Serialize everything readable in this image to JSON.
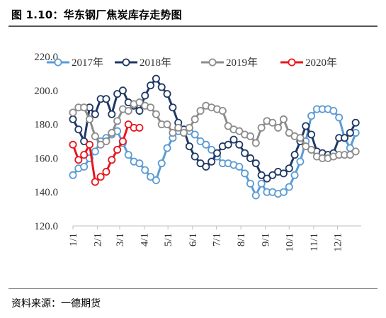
{
  "figure": {
    "title": "图 1.10：华东钢厂焦炭库存走势图",
    "source": "资料来源：一德期货"
  },
  "chart_data": {
    "type": "line",
    "title": "",
    "xlabel": "",
    "ylabel": "",
    "ylim": [
      120,
      220
    ],
    "yticks": [
      "120.0",
      "140.0",
      "160.0",
      "180.0",
      "200.0",
      "220.0"
    ],
    "xlim": [
      0,
      52
    ],
    "xticks": [
      {
        "label": "1/1",
        "x": 0
      },
      {
        "label": "2/1",
        "x": 4.43
      },
      {
        "label": "3/1",
        "x": 8.43
      },
      {
        "label": "4/1",
        "x": 12.86
      },
      {
        "label": "5/1",
        "x": 17.14
      },
      {
        "label": "6/1",
        "x": 21.57
      },
      {
        "label": "7/1",
        "x": 25.86
      },
      {
        "label": "8/1",
        "x": 30.29
      },
      {
        "label": "9/1",
        "x": 34.71
      },
      {
        "label": "10/1",
        "x": 39.0
      },
      {
        "label": "11/1",
        "x": 43.43
      },
      {
        "label": "12/1",
        "x": 47.71
      }
    ],
    "grid": false,
    "legend": "top",
    "series": [
      {
        "name": "2017年",
        "color": "#5b9bd5",
        "x": [
          0,
          1,
          2,
          3,
          4,
          5,
          6,
          7,
          8,
          9,
          10,
          11,
          12,
          13,
          14,
          15,
          16,
          17,
          18,
          19,
          20,
          21,
          22,
          23,
          24,
          25,
          26,
          27,
          28,
          29,
          30,
          31,
          32,
          33,
          34,
          35,
          36,
          37,
          38,
          39,
          40,
          41,
          42,
          43,
          44,
          45,
          46,
          47,
          48,
          49,
          50,
          51
        ],
        "values": [
          150,
          154,
          155,
          160,
          164,
          170,
          172,
          174,
          176,
          169,
          162,
          158,
          157,
          153,
          149,
          147,
          157,
          166,
          172,
          176,
          176,
          176,
          174,
          170,
          168,
          165,
          161,
          157,
          157,
          156,
          155,
          151,
          145,
          138,
          145,
          140,
          140,
          139,
          140,
          143,
          150,
          158,
          170,
          185,
          189,
          189,
          189,
          188,
          184,
          172,
          166,
          175
        ]
      },
      {
        "name": "2018年",
        "color": "#1f3864",
        "x": [
          0,
          1,
          2,
          3,
          4,
          5,
          6,
          7,
          8,
          9,
          10,
          11,
          12,
          13,
          14,
          15,
          16,
          17,
          18,
          19,
          20,
          21,
          22,
          23,
          24,
          25,
          26,
          27,
          28,
          29,
          30,
          31,
          32,
          33,
          34,
          35,
          36,
          37,
          38,
          39,
          40,
          41,
          42,
          43,
          44,
          45,
          46,
          47,
          48,
          49,
          50,
          51
        ],
        "values": [
          183,
          177,
          170,
          190,
          186,
          195,
          195,
          186,
          198,
          200,
          193,
          191,
          188,
          197,
          203,
          207,
          202,
          198,
          190,
          181,
          177,
          167,
          161,
          157,
          155,
          158,
          163,
          167,
          168,
          171,
          168,
          163,
          160,
          157,
          150,
          148,
          150,
          152,
          151,
          154,
          162,
          170,
          179,
          174,
          164,
          163,
          162,
          163,
          172,
          172,
          175,
          181
        ]
      },
      {
        "name": "2019年",
        "color": "#8c8c8c",
        "x": [
          0,
          1,
          2,
          3,
          4,
          5,
          6,
          7,
          8,
          9,
          10,
          11,
          12,
          13,
          14,
          15,
          16,
          17,
          18,
          19,
          20,
          21,
          22,
          23,
          24,
          25,
          26,
          27,
          28,
          29,
          30,
          31,
          32,
          33,
          34,
          35,
          36,
          37,
          38,
          39,
          40,
          41,
          42,
          43,
          44,
          45,
          46,
          47,
          48,
          49,
          50,
          51
        ],
        "values": [
          187,
          190,
          190,
          183,
          173,
          168,
          170,
          175,
          182,
          189,
          188,
          192,
          193,
          191,
          190,
          186,
          180,
          180,
          175,
          178,
          175,
          178,
          183,
          188,
          191,
          190,
          189,
          188,
          179,
          177,
          176,
          174,
          173,
          169,
          178,
          182,
          181,
          178,
          183,
          175,
          173,
          172,
          167,
          165,
          161,
          160,
          160,
          161,
          162,
          162,
          162,
          164
        ]
      },
      {
        "name": "2020年",
        "color": "#e8161b",
        "x": [
          0,
          1,
          2,
          3,
          4,
          5,
          6,
          7,
          8,
          9,
          10,
          11,
          12
        ],
        "values": [
          168,
          159,
          162,
          168,
          146,
          149,
          152,
          159,
          165,
          170,
          180,
          178,
          178
        ]
      }
    ]
  }
}
